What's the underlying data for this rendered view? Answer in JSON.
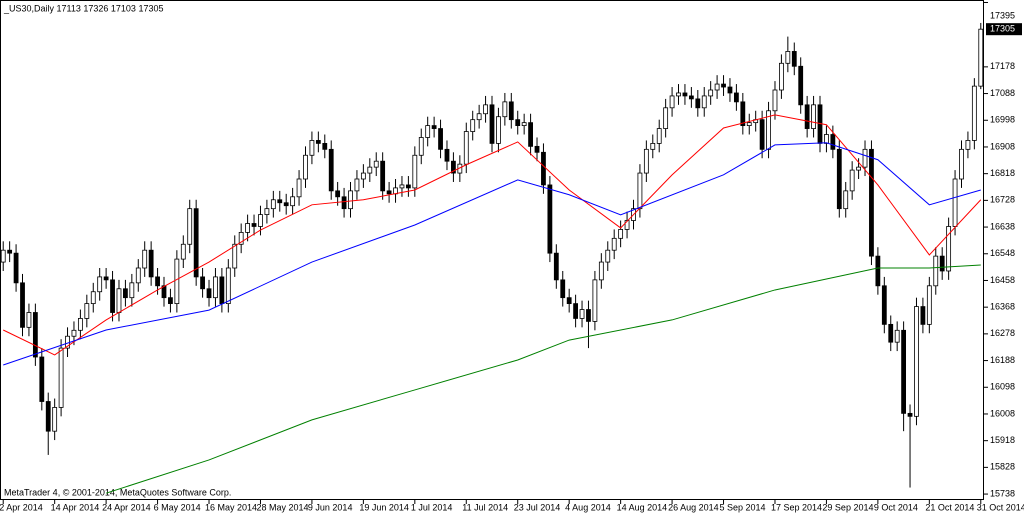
{
  "chart_data": {
    "type": "candlestick",
    "title": "_US30,Daily  17113 17326 17103 17305",
    "footer": "MetaTrader 4, © 2001-2014, MetaQuotes Software Corp.",
    "categories": [
      "2 Apr 2014",
      null,
      null,
      null,
      null,
      null,
      null,
      null,
      "14 Apr 2014",
      null,
      null,
      null,
      null,
      null,
      null,
      null,
      "24 Apr 2014",
      null,
      null,
      null,
      null,
      null,
      null,
      null,
      "6 May 2014",
      null,
      null,
      null,
      null,
      null,
      null,
      null,
      "16 May 2014",
      null,
      null,
      null,
      null,
      null,
      null,
      null,
      "28 May 2014",
      null,
      null,
      null,
      null,
      null,
      null,
      null,
      "9 Jun 2014",
      null,
      null,
      null,
      null,
      null,
      null,
      null,
      "19 Jun 2014",
      null,
      null,
      null,
      null,
      null,
      null,
      null,
      "1 Jul 2014",
      null,
      null,
      null,
      null,
      null,
      null,
      null,
      "11 Jul 2014",
      null,
      null,
      null,
      null,
      null,
      null,
      null,
      "23 Jul 2014",
      null,
      null,
      null,
      null,
      null,
      null,
      null,
      "4 Aug 2014",
      null,
      null,
      null,
      null,
      null,
      null,
      null,
      "14 Aug 2014",
      null,
      null,
      null,
      null,
      null,
      null,
      null,
      "26 Aug 2014",
      null,
      null,
      null,
      null,
      null,
      null,
      null,
      "5 Sep 2014",
      null,
      null,
      null,
      null,
      null,
      null,
      null,
      "17 Sep 2014",
      null,
      null,
      null,
      null,
      null,
      null,
      null,
      "29 Sep 2014",
      null,
      null,
      null,
      null,
      null,
      null,
      null,
      "9 Oct 2014",
      null,
      null,
      null,
      null,
      null,
      null,
      null,
      "21 Oct 2014",
      null,
      null,
      null,
      null,
      null,
      null,
      null,
      "31 Oct 2014"
    ],
    "open": [
      16520,
      16560,
      16550,
      16450,
      16300,
      16350,
      16200,
      16050,
      15950,
      16030,
      16230,
      16270,
      16290,
      16330,
      16380,
      16420,
      16470,
      16460,
      16350,
      16430,
      16400,
      16450,
      16500,
      16560,
      16470,
      16440,
      16400,
      16380,
      16530,
      16580,
      16700,
      16470,
      16430,
      16400,
      16470,
      16380,
      16500,
      16580,
      16620,
      16650,
      16640,
      16680,
      16700,
      16730,
      16720,
      16710,
      16740,
      16800,
      16880,
      16930,
      16920,
      16900,
      16760,
      16740,
      16700,
      16760,
      16800,
      16820,
      16840,
      16860,
      16760,
      16750,
      16770,
      16780,
      16770,
      16880,
      16940,
      16980,
      16970,
      16900,
      16860,
      16820,
      16850,
      16960,
      17000,
      17020,
      17050,
      16920,
      17010,
      17060,
      17000,
      16980,
      16990,
      16910,
      16890,
      16780,
      16550,
      16460,
      16400,
      16380,
      16330,
      16360,
      16320,
      16460,
      16520,
      16560,
      16600,
      16630,
      16660,
      16700,
      16820,
      16900,
      16920,
      16970,
      17040,
      17080,
      17090,
      17080,
      17070,
      17040,
      17080,
      17100,
      17120,
      17110,
      17090,
      17060,
      16980,
      16990,
      17000,
      16900,
      17030,
      17100,
      17190,
      17230,
      17180,
      17050,
      16970,
      17050,
      16920,
      16950,
      16900,
      16700,
      16760,
      16830,
      16840,
      16900,
      16540,
      16440,
      16310,
      16250,
      16290,
      16010,
      16000,
      16370,
      16310,
      16440,
      16540,
      16490,
      16640,
      16800,
      16900,
      16930,
      17113
    ],
    "high": [
      16590,
      16590,
      16580,
      16480,
      16380,
      16380,
      16230,
      16080,
      16060,
      16260,
      16300,
      16320,
      16360,
      16410,
      16450,
      16500,
      16500,
      16490,
      16460,
      16460,
      16480,
      16530,
      16590,
      16590,
      16500,
      16470,
      16430,
      16560,
      16610,
      16730,
      16730,
      16500,
      16460,
      16500,
      16500,
      16530,
      16610,
      16650,
      16680,
      16680,
      16710,
      16730,
      16760,
      16760,
      16750,
      16770,
      16830,
      16910,
      16960,
      16960,
      16950,
      16930,
      16790,
      16770,
      16790,
      16830,
      16850,
      16870,
      16890,
      16890,
      16790,
      16800,
      16810,
      16810,
      16910,
      16970,
      17010,
      17010,
      17000,
      16930,
      16890,
      16880,
      16990,
      17030,
      17050,
      17080,
      17080,
      17040,
      17090,
      17090,
      17030,
      17020,
      17020,
      16940,
      16920,
      16810,
      16580,
      16490,
      16430,
      16410,
      16390,
      16390,
      16490,
      16550,
      16590,
      16630,
      16660,
      16690,
      16730,
      16850,
      16930,
      16950,
      17000,
      17070,
      17110,
      17120,
      17120,
      17110,
      17100,
      17110,
      17130,
      17150,
      17150,
      17140,
      17120,
      17090,
      17020,
      17030,
      17030,
      17060,
      17130,
      17220,
      17280,
      17260,
      17210,
      17080,
      17080,
      17080,
      16980,
      16980,
      16930,
      16790,
      16860,
      16870,
      16930,
      16930,
      16570,
      16470,
      16340,
      16320,
      16320,
      16040,
      16400,
      16400,
      16470,
      16570,
      16570,
      16670,
      16830,
      16930,
      16960,
      17140,
      17326
    ],
    "low": [
      16490,
      16520,
      16420,
      16270,
      16270,
      16170,
      16020,
      15870,
      15920,
      16000,
      16200,
      16240,
      16260,
      16300,
      16350,
      16390,
      16430,
      16320,
      16320,
      16370,
      16370,
      16420,
      16470,
      16440,
      16410,
      16370,
      16350,
      16350,
      16500,
      16550,
      16440,
      16400,
      16370,
      16370,
      16350,
      16350,
      16470,
      16550,
      16590,
      16610,
      16610,
      16650,
      16670,
      16690,
      16680,
      16680,
      16710,
      16770,
      16850,
      16890,
      16870,
      16730,
      16710,
      16670,
      16670,
      16730,
      16770,
      16790,
      16810,
      16730,
      16720,
      16720,
      16740,
      16740,
      16740,
      16850,
      16910,
      16940,
      16870,
      16830,
      16790,
      16790,
      16820,
      16930,
      16970,
      16990,
      16890,
      16890,
      16980,
      16970,
      16950,
      16950,
      16880,
      16860,
      16750,
      16520,
      16430,
      16370,
      16350,
      16300,
      16300,
      16230,
      16290,
      16430,
      16490,
      16530,
      16570,
      16600,
      16630,
      16670,
      16790,
      16870,
      16890,
      16940,
      17010,
      17050,
      17050,
      17040,
      17010,
      17010,
      17050,
      17070,
      17080,
      17060,
      17030,
      16950,
      16950,
      16960,
      16870,
      16870,
      17000,
      17070,
      17160,
      17150,
      17020,
      16940,
      16940,
      16890,
      16890,
      16870,
      16670,
      16670,
      16730,
      16800,
      16810,
      16510,
      16410,
      16280,
      16220,
      16220,
      15950,
      15760,
      15970,
      16280,
      16280,
      16410,
      16460,
      16460,
      16610,
      16770,
      16870,
      16900,
      17103
    ],
    "close": [
      16560,
      16550,
      16450,
      16300,
      16350,
      16200,
      16050,
      15950,
      16030,
      16230,
      16270,
      16290,
      16330,
      16380,
      16420,
      16470,
      16460,
      16350,
      16430,
      16400,
      16450,
      16500,
      16560,
      16470,
      16440,
      16400,
      16380,
      16530,
      16580,
      16700,
      16470,
      16430,
      16400,
      16470,
      16380,
      16500,
      16580,
      16620,
      16650,
      16640,
      16680,
      16700,
      16730,
      16720,
      16710,
      16740,
      16800,
      16880,
      16930,
      16920,
      16900,
      16760,
      16740,
      16700,
      16760,
      16800,
      16820,
      16840,
      16860,
      16760,
      16750,
      16770,
      16780,
      16770,
      16880,
      16940,
      16980,
      16970,
      16900,
      16860,
      16820,
      16850,
      16960,
      17000,
      17020,
      17050,
      16920,
      17010,
      17060,
      17000,
      16980,
      16990,
      16910,
      16890,
      16780,
      16550,
      16460,
      16400,
      16380,
      16330,
      16360,
      16320,
      16460,
      16520,
      16560,
      16600,
      16630,
      16660,
      16700,
      16820,
      16900,
      16920,
      16970,
      17040,
      17080,
      17090,
      17080,
      17070,
      17040,
      17080,
      17100,
      17120,
      17110,
      17090,
      17060,
      16980,
      16990,
      17000,
      16900,
      17030,
      17100,
      17190,
      17230,
      17180,
      17050,
      16970,
      17050,
      16920,
      16950,
      16900,
      16700,
      16760,
      16830,
      16840,
      16900,
      16540,
      16440,
      16310,
      16250,
      16290,
      16010,
      16000,
      16370,
      16310,
      16440,
      16540,
      16490,
      16640,
      16800,
      16900,
      16930,
      17113,
      17305
    ],
    "lines": [
      {
        "color": "#ff0000",
        "x": [
          0,
          8,
          16,
          24,
          32,
          40,
          48,
          56,
          64,
          72,
          80,
          88,
          96,
          104,
          112,
          120,
          128,
          136,
          144,
          152
        ],
        "values": [
          16291,
          16207,
          16325,
          16426,
          16520,
          16628,
          16713,
          16730,
          16763,
          16848,
          16925,
          16763,
          16635,
          16814,
          16972,
          17016,
          16983,
          16780,
          16544,
          16730
        ]
      },
      {
        "color": "#0000ff",
        "x": [
          0,
          16,
          32,
          48,
          64,
          80,
          88,
          96,
          112,
          120,
          128,
          136,
          144,
          152
        ],
        "values": [
          16173,
          16291,
          16358,
          16520,
          16645,
          16797,
          16747,
          16679,
          16814,
          16915,
          16922,
          16865,
          16713,
          16763
        ]
      },
      {
        "color": "#008000",
        "x": [
          16,
          32,
          48,
          64,
          80,
          88,
          104,
          120,
          136,
          144,
          152
        ],
        "values": [
          15741,
          15853,
          15988,
          16089,
          16190,
          16257,
          16325,
          16426,
          16500,
          16500,
          16510
        ]
      }
    ],
    "ylim": [
      15718,
      17400
    ],
    "yticks": [
      17395,
      17178,
      17088,
      16998,
      16908,
      16818,
      16728,
      16638,
      16548,
      16458,
      16368,
      16278,
      16188,
      16098,
      16008,
      15918,
      15828,
      15738
    ],
    "bull_color": "#ffffff",
    "bear_color": "#000000",
    "axis_side": "right"
  }
}
